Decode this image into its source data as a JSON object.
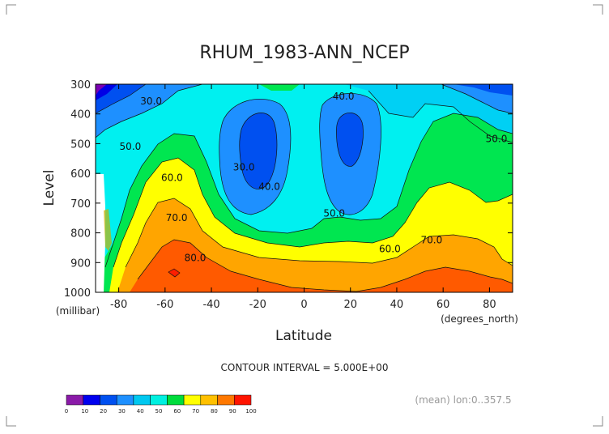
{
  "chart_data": {
    "type": "contour",
    "title": "RHUM_1983-ANN_NCEP",
    "xlabel": "Latitude",
    "xunits": "(degrees_north)",
    "ylabel": "Level",
    "yunits": "(millibar)",
    "xlim": [
      -90,
      90
    ],
    "ylim": [
      1000,
      300
    ],
    "xticks": [
      "-80",
      "-60",
      "-40",
      "-20",
      "0",
      "20",
      "40",
      "60",
      "80"
    ],
    "yticks": [
      "300",
      "400",
      "500",
      "600",
      "700",
      "800",
      "900",
      "1000"
    ],
    "contour_interval_text": "CONTOUR INTERVAL = 5.000E+00",
    "footnote": "(mean) lon:0..357.5",
    "contour_labels": [
      {
        "text": "30.0",
        "lat": -66,
        "p": 368
      },
      {
        "text": "50.0",
        "lat": -75,
        "p": 520
      },
      {
        "text": "60.0",
        "lat": -57,
        "p": 625
      },
      {
        "text": "70.0",
        "lat": -55,
        "p": 760
      },
      {
        "text": "80.0",
        "lat": -47,
        "p": 895
      },
      {
        "text": "30.0",
        "lat": -26,
        "p": 590
      },
      {
        "text": "40.0",
        "lat": -15,
        "p": 655
      },
      {
        "text": "40.0",
        "lat": 17,
        "p": 352
      },
      {
        "text": "50.0",
        "lat": 13,
        "p": 745
      },
      {
        "text": "60.0",
        "lat": 37,
        "p": 865
      },
      {
        "text": "70.0",
        "lat": 55,
        "p": 835
      },
      {
        "text": "50.0",
        "lat": 83,
        "p": 495
      }
    ],
    "color_levels": [
      0,
      10,
      20,
      30,
      40,
      50,
      60,
      70,
      80,
      90,
      100
    ],
    "colorbar": {
      "labels": [
        "0",
        "10",
        "20",
        "30",
        "40",
        "50",
        "60",
        "70",
        "80",
        "90",
        "100"
      ],
      "colors": [
        "#8a1aa8",
        "#0000ee",
        "#0050f0",
        "#1e90ff",
        "#00c8f0",
        "#00f0e0",
        "#00dc3c",
        "#ffff00",
        "#ffc000",
        "#ff7800",
        "#ff1400"
      ]
    },
    "fill_colors": {
      "c0": "#7b00b4",
      "c10": "#0000e6",
      "c20": "#0050f0",
      "c30": "#1e90ff",
      "c40": "#00d0f4",
      "c50": "#00f0f0",
      "c60": "#00e650",
      "c70": "#ffff00",
      "c80": "#ffa500",
      "c90": "#ff5a00",
      "c100": "#ff1e00"
    }
  }
}
